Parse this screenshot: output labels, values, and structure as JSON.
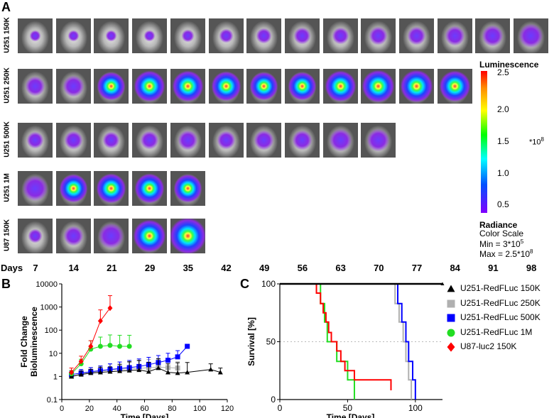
{
  "panels": {
    "a": "A",
    "b": "B",
    "c": "C"
  },
  "imaging": {
    "rows": [
      {
        "label": "U251 150K",
        "count": 14,
        "signal": [
          0.1,
          0.1,
          0.1,
          0.1,
          0.15,
          0.2,
          0.25,
          0.3,
          0.3,
          0.35,
          0.35,
          0.4,
          0.45,
          0.55
        ]
      },
      {
        "label": "U251 250K",
        "count": 12,
        "signal": [
          0.4,
          0.45,
          0.7,
          0.8,
          0.8,
          0.75,
          0.7,
          0.7,
          0.8,
          0.85,
          0.85,
          0.8
        ]
      },
      {
        "label": "U251 500K",
        "count": 10,
        "signal": [
          0.3,
          0.35,
          0.3,
          0.35,
          0.4,
          0.35,
          0.4,
          0.4,
          0.5,
          0.5
        ]
      },
      {
        "label": "U251 1M",
        "count": 5,
        "signal": [
          0.6,
          0.7,
          0.75,
          0.75,
          0.7
        ]
      },
      {
        "label": "U87 150K",
        "count": 5,
        "signal": [
          0.2,
          0.4,
          0.6,
          0.85,
          1.0
        ]
      }
    ],
    "days_label": "Days",
    "days": [
      "7",
      "14",
      "21",
      "29",
      "35",
      "42",
      "49",
      "56",
      "63",
      "70",
      "77",
      "84",
      "91",
      "98"
    ]
  },
  "colorbar": {
    "title": "Luminescence",
    "ticks": [
      "2.5",
      "2.0",
      "1.5",
      "1.0",
      "0.5"
    ],
    "multiplier": "*10",
    "multiplier_exp": "8",
    "radiance": "Radiance",
    "color_scale": "Color Scale",
    "min_label": "Min = 3*10",
    "min_exp": "5",
    "max_label": "Max = 2.5*10",
    "max_exp": "8",
    "colors": [
      "#ff0000",
      "#ffa500",
      "#ffff00",
      "#00ff00",
      "#00ffff",
      "#0000ff",
      "#8000ff"
    ]
  },
  "chart_data": [
    {
      "type": "line",
      "title": "",
      "xlabel": "Time [Days]",
      "ylabel": "Fold Change Bioluminescence",
      "xlim": [
        0,
        120
      ],
      "ylim": [
        0.1,
        10000
      ],
      "yscale": "log",
      "xticks": [
        "0",
        "20",
        "40",
        "60",
        "80",
        "100",
        "120"
      ],
      "yticks": [
        "0.1",
        "1",
        "10",
        "100",
        "1000",
        "10000"
      ],
      "series": [
        {
          "name": "U251-RedFLuc 150K",
          "color": "#000000",
          "marker": "triangle",
          "x": [
            7,
            14,
            21,
            28,
            35,
            42,
            49,
            56,
            63,
            70,
            77,
            84,
            91,
            108,
            115
          ],
          "y": [
            1.0,
            1.2,
            1.4,
            1.5,
            1.6,
            1.7,
            1.8,
            1.9,
            1.6,
            2.3,
            1.5,
            1.4,
            1.5,
            2.0,
            1.5
          ],
          "err": [
            0.3,
            0.5,
            0.6,
            1.0,
            1.0,
            1.5,
            2.5,
            3.0,
            2.5,
            3.5,
            2.0,
            2.5,
            2.5,
            1.5,
            0.8
          ]
        },
        {
          "name": "U251-RedFLuc 250K",
          "color": "#b0b0b0",
          "marker": "square",
          "x": [
            7,
            14,
            21,
            28,
            35,
            42,
            49,
            56,
            63,
            70,
            77,
            84
          ],
          "y": [
            1.0,
            1.3,
            1.5,
            1.7,
            1.9,
            2.0,
            2.1,
            2.2,
            2.4,
            2.5,
            2.4,
            2.3
          ],
          "err": [
            0.3,
            0.5,
            0.8,
            1.2,
            1.5,
            1.5,
            2.0,
            2.5,
            3.0,
            3.0,
            2.5,
            2.0
          ]
        },
        {
          "name": "U251-RedFLuc 500K",
          "color": "#0000ff",
          "marker": "square",
          "x": [
            7,
            14,
            21,
            28,
            35,
            42,
            49,
            56,
            63,
            70,
            77,
            84,
            91
          ],
          "y": [
            1.2,
            1.4,
            1.6,
            1.8,
            2.0,
            2.2,
            2.4,
            2.7,
            3.2,
            4.0,
            5.0,
            7.0,
            20
          ],
          "err": [
            0.5,
            0.6,
            0.8,
            1.0,
            1.5,
            2.0,
            2.5,
            3.0,
            3.5,
            4.0,
            5.0,
            6.0,
            0
          ]
        },
        {
          "name": "U251-RedFLuc 1M",
          "color": "#22dd22",
          "marker": "circle",
          "x": [
            7,
            14,
            21,
            28,
            35,
            42,
            49
          ],
          "y": [
            1.3,
            3.5,
            15,
            20,
            22,
            20,
            20
          ],
          "err": [
            0.5,
            2.0,
            20,
            30,
            40,
            40,
            40
          ]
        },
        {
          "name": "U87-luc2 150K",
          "color": "#ff0000",
          "marker": "diamond",
          "x": [
            7,
            14,
            21,
            28,
            35
          ],
          "y": [
            1.5,
            4.5,
            20,
            250,
            900
          ],
          "err": [
            0.8,
            3.0,
            15,
            500,
            2200
          ]
        }
      ]
    },
    {
      "type": "line",
      "title": "",
      "xlabel": "Time [Days]",
      "ylabel": "Survival [%]",
      "xlim": [
        0,
        120
      ],
      "ylim": [
        0,
        100
      ],
      "step": true,
      "xticks": [
        "0",
        "50",
        "100"
      ],
      "yticks": [
        "0",
        "50",
        "100"
      ],
      "series": [
        {
          "name": "U251-RedFLuc 150K",
          "color": "#000000",
          "marker": "triangle",
          "x": [
            0,
            120
          ],
          "y": [
            100,
            100
          ]
        },
        {
          "name": "U251-RedFLuc 250K",
          "color": "#b0b0b0",
          "marker": "square",
          "x": [
            0,
            82,
            85,
            88,
            91,
            93,
            95,
            97
          ],
          "y": [
            100,
            100,
            83,
            67,
            50,
            33,
            17,
            0
          ]
        },
        {
          "name": "U251-RedFLuc 500K",
          "color": "#0000ff",
          "marker": "square",
          "x": [
            0,
            83,
            87,
            90,
            93,
            95,
            98,
            100
          ],
          "y": [
            100,
            100,
            83,
            67,
            50,
            33,
            17,
            0
          ]
        },
        {
          "name": "U251-RedFLuc 1M",
          "color": "#22dd22",
          "marker": "circle",
          "x": [
            0,
            28,
            30,
            33,
            35,
            42,
            50,
            55
          ],
          "y": [
            100,
            100,
            83,
            67,
            50,
            33,
            17,
            0
          ]
        },
        {
          "name": "U87-luc2 150K",
          "color": "#ff0000",
          "marker": "diamond",
          "x": [
            0,
            25,
            27,
            30,
            32,
            34,
            36,
            38,
            42,
            45,
            48,
            55,
            82
          ],
          "y": [
            100,
            100,
            92,
            83,
            75,
            67,
            58,
            50,
            42,
            33,
            25,
            17,
            8
          ]
        }
      ]
    }
  ],
  "legend": [
    {
      "label": "U251-RedFLuc 150K",
      "color": "#000000",
      "marker": "triangle"
    },
    {
      "label": "U251-RedFLuc 250K",
      "color": "#b0b0b0",
      "marker": "square"
    },
    {
      "label": "U251-RedFLuc 500K",
      "color": "#0000ff",
      "marker": "square"
    },
    {
      "label": "U251-RedFLuc 1M",
      "color": "#22dd22",
      "marker": "circle"
    },
    {
      "label": "U87-luc2 150K",
      "color": "#ff0000",
      "marker": "diamond"
    }
  ]
}
